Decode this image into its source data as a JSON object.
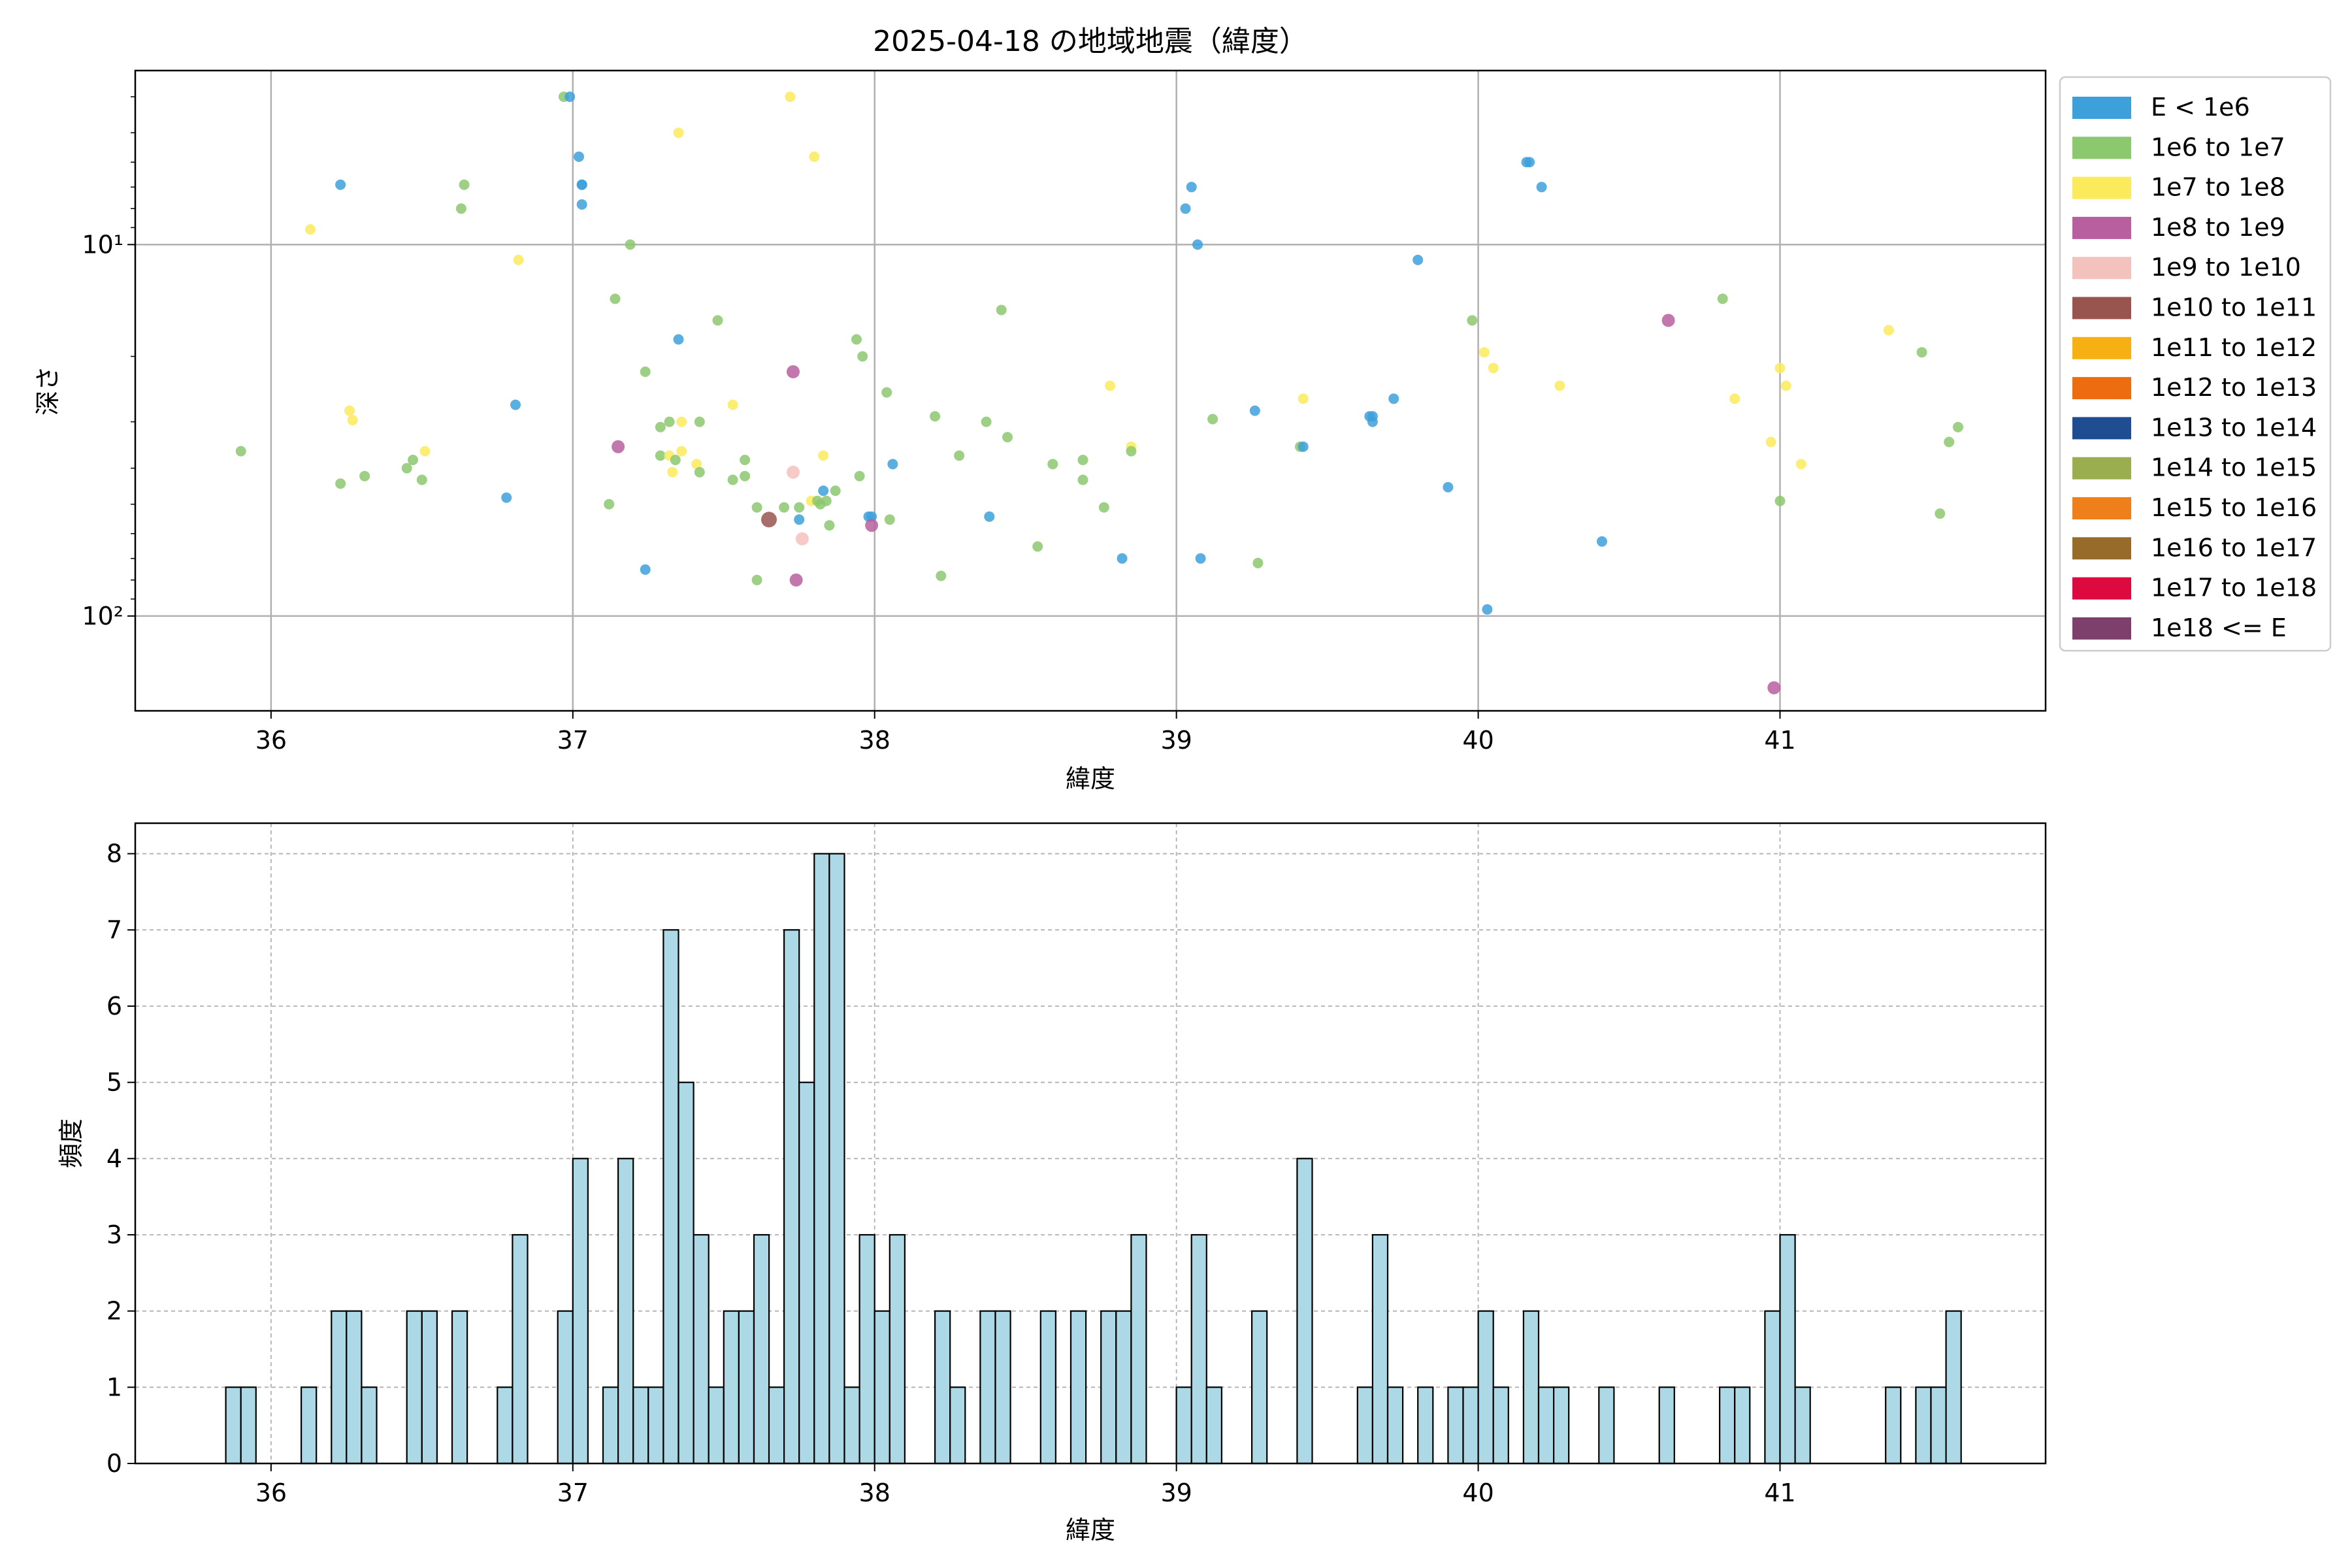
{
  "chart_data": [
    {
      "type": "scatter",
      "title": "2025-04-18 の地域地震（緯度）",
      "xlabel": "緯度",
      "ylabel": "深さ",
      "xlim": [
        35.55,
        41.88
      ],
      "ylim": [
        180,
        3.4
      ],
      "yscale": "log (inverted)",
      "xticks": [
        "36",
        "37",
        "38",
        "39",
        "40",
        "41"
      ],
      "yticks": [
        {
          "label": "10¹",
          "value": 10
        },
        {
          "label": "10²",
          "value": 100
        }
      ],
      "grid": true,
      "legend_position": "outside-right",
      "legend": [
        {
          "label": "E < 1e6",
          "color": "#3da0da"
        },
        {
          "label": "1e6 to 1e7",
          "color": "#8cc86e"
        },
        {
          "label": "1e7 to 1e8",
          "color": "#fbeb5c"
        },
        {
          "label": "1e8 to 1e9",
          "color": "#b8609f"
        },
        {
          "label": "1e9 to 1e10",
          "color": "#f4c2bd"
        },
        {
          "label": "1e10 to 1e11",
          "color": "#985550"
        },
        {
          "label": "1e11 to 1e12",
          "color": "#f7b014"
        },
        {
          "label": "1e12 to 1e13",
          "color": "#ed6c10"
        },
        {
          "label": "1e13 to 1e14",
          "color": "#1f4d91"
        },
        {
          "label": "1e14 to 1e15",
          "color": "#9aae50"
        },
        {
          "label": "1e15 to 1e16",
          "color": "#ef7f1a"
        },
        {
          "label": "1e16 to 1e17",
          "color": "#976c2a"
        },
        {
          "label": "1e17 to 1e18",
          "color": "#dc0a3f"
        },
        {
          "label": "1e18 <= E",
          "color": "#7d3f6c"
        }
      ],
      "points": [
        [
          35.9,
          36.0,
          1
        ],
        [
          36.13,
          9.1,
          2
        ],
        [
          36.23,
          6.9,
          0
        ],
        [
          36.23,
          44.0,
          1
        ],
        [
          36.26,
          28.0,
          2
        ],
        [
          36.27,
          29.7,
          2
        ],
        [
          36.31,
          42.0,
          1
        ],
        [
          36.45,
          40.0,
          1
        ],
        [
          36.47,
          38.0,
          1
        ],
        [
          36.5,
          43.0,
          1
        ],
        [
          36.51,
          36.0,
          2
        ],
        [
          36.63,
          8.0,
          1
        ],
        [
          36.64,
          6.9,
          1
        ],
        [
          36.78,
          48.0,
          0
        ],
        [
          36.81,
          27.0,
          0
        ],
        [
          36.82,
          11.0,
          2
        ],
        [
          36.97,
          4.0,
          1
        ],
        [
          36.99,
          4.0,
          0
        ],
        [
          37.02,
          5.8,
          0
        ],
        [
          37.03,
          6.9,
          0
        ],
        [
          37.03,
          6.9,
          0
        ],
        [
          37.03,
          7.8,
          0
        ],
        [
          37.12,
          50.0,
          1
        ],
        [
          37.14,
          14.0,
          1
        ],
        [
          37.15,
          35.0,
          3
        ],
        [
          37.19,
          10.0,
          1
        ],
        [
          37.24,
          22.0,
          1
        ],
        [
          37.24,
          75.0,
          0
        ],
        [
          37.29,
          31.0,
          1
        ],
        [
          37.29,
          37.0,
          1
        ],
        [
          37.32,
          30.0,
          1
        ],
        [
          37.32,
          37.0,
          2
        ],
        [
          37.33,
          41.0,
          2
        ],
        [
          37.34,
          38.0,
          1
        ],
        [
          37.35,
          18.0,
          0
        ],
        [
          37.35,
          5.0,
          2
        ],
        [
          37.36,
          30.0,
          2
        ],
        [
          37.36,
          36.0,
          2
        ],
        [
          37.41,
          39.0,
          2
        ],
        [
          37.42,
          30.0,
          1
        ],
        [
          37.42,
          41.0,
          1
        ],
        [
          37.48,
          16.0,
          1
        ],
        [
          37.53,
          27.0,
          2
        ],
        [
          37.53,
          43.0,
          1
        ],
        [
          37.57,
          38.0,
          1
        ],
        [
          37.57,
          42.0,
          1
        ],
        [
          37.61,
          80.0,
          1
        ],
        [
          37.61,
          51.0,
          1
        ],
        [
          37.65,
          55.0,
          5
        ],
        [
          37.7,
          51.0,
          1
        ],
        [
          37.72,
          4.0,
          2
        ],
        [
          37.73,
          22.0,
          3
        ],
        [
          37.73,
          41.0,
          4
        ],
        [
          37.74,
          80.0,
          3
        ],
        [
          37.75,
          51.0,
          1
        ],
        [
          37.75,
          55.0,
          0
        ],
        [
          37.76,
          62.0,
          4
        ],
        [
          37.79,
          49.0,
          2
        ],
        [
          37.8,
          5.8,
          2
        ],
        [
          37.81,
          49.0,
          1
        ],
        [
          37.82,
          50.0,
          1
        ],
        [
          37.83,
          46.0,
          0
        ],
        [
          37.83,
          37.0,
          2
        ],
        [
          37.84,
          49.0,
          1
        ],
        [
          37.85,
          57.0,
          1
        ],
        [
          37.87,
          46.0,
          1
        ],
        [
          37.94,
          18.0,
          1
        ],
        [
          37.95,
          42.0,
          1
        ],
        [
          37.96,
          20.0,
          1
        ],
        [
          37.98,
          54.0,
          0
        ],
        [
          37.99,
          54.0,
          0
        ],
        [
          37.99,
          57.0,
          3
        ],
        [
          38.04,
          25.0,
          1
        ],
        [
          38.05,
          55.0,
          1
        ],
        [
          38.06,
          39.0,
          0
        ],
        [
          38.2,
          29.0,
          1
        ],
        [
          38.22,
          78.0,
          1
        ],
        [
          38.28,
          37.0,
          1
        ],
        [
          38.37,
          30.0,
          1
        ],
        [
          38.38,
          54.0,
          0
        ],
        [
          38.42,
          15.0,
          1
        ],
        [
          38.44,
          33.0,
          1
        ],
        [
          38.54,
          65.0,
          1
        ],
        [
          38.59,
          39.0,
          1
        ],
        [
          38.69,
          38.0,
          1
        ],
        [
          38.69,
          43.0,
          1
        ],
        [
          38.76,
          51.0,
          1
        ],
        [
          38.78,
          24.0,
          2
        ],
        [
          38.82,
          70.0,
          0
        ],
        [
          38.85,
          35.0,
          2
        ],
        [
          38.85,
          36.0,
          1
        ],
        [
          39.03,
          8.0,
          0
        ],
        [
          39.05,
          7.0,
          0
        ],
        [
          39.07,
          10.0,
          0
        ],
        [
          39.08,
          70.0,
          0
        ],
        [
          39.12,
          29.5,
          1
        ],
        [
          39.26,
          28.0,
          0
        ],
        [
          39.27,
          72.0,
          1
        ],
        [
          39.41,
          35.0,
          1
        ],
        [
          39.42,
          26.0,
          2
        ],
        [
          39.42,
          35.0,
          0
        ],
        [
          39.64,
          29.0,
          0
        ],
        [
          39.65,
          29.0,
          0
        ],
        [
          39.65,
          30.0,
          0
        ],
        [
          39.72,
          26.0,
          0
        ],
        [
          39.8,
          11.0,
          0
        ],
        [
          39.9,
          45.0,
          0
        ],
        [
          39.98,
          16.0,
          1
        ],
        [
          40.02,
          19.5,
          2
        ],
        [
          40.03,
          96.0,
          0
        ],
        [
          40.05,
          21.5,
          2
        ],
        [
          40.16,
          6.0,
          0
        ],
        [
          40.17,
          6.0,
          0
        ],
        [
          40.21,
          7.0,
          0
        ],
        [
          40.27,
          24.0,
          2
        ],
        [
          40.41,
          63.0,
          0
        ],
        [
          40.63,
          16.0,
          3
        ],
        [
          40.81,
          14.0,
          1
        ],
        [
          40.85,
          26.0,
          2
        ],
        [
          40.97,
          34.0,
          2
        ],
        [
          40.98,
          156.0,
          3
        ],
        [
          41.0,
          21.5,
          2
        ],
        [
          41.0,
          49.0,
          1
        ],
        [
          41.02,
          24.0,
          2
        ],
        [
          41.07,
          39.0,
          2
        ],
        [
          41.36,
          17.0,
          2
        ],
        [
          41.47,
          19.5,
          1
        ],
        [
          41.53,
          53.0,
          1
        ],
        [
          41.56,
          34.0,
          1
        ],
        [
          41.59,
          31.0,
          1
        ]
      ]
    },
    {
      "type": "bar",
      "title": "",
      "xlabel": "緯度",
      "ylabel": "頻度",
      "xlim": [
        35.55,
        41.88
      ],
      "ylim": [
        0,
        8.4
      ],
      "xticks": [
        "36",
        "37",
        "38",
        "39",
        "40",
        "41"
      ],
      "yticks": [
        "0",
        "1",
        "2",
        "3",
        "4",
        "5",
        "6",
        "7",
        "8"
      ],
      "grid": true,
      "bar_color": "#add8e6",
      "bin_width": 0.05,
      "bins": [
        [
          35.85,
          1
        ],
        [
          35.9,
          1
        ],
        [
          36.1,
          1
        ],
        [
          36.2,
          2
        ],
        [
          36.25,
          2
        ],
        [
          36.3,
          1
        ],
        [
          36.45,
          2
        ],
        [
          36.5,
          2
        ],
        [
          36.6,
          2
        ],
        [
          36.75,
          1
        ],
        [
          36.8,
          3
        ],
        [
          36.95,
          2
        ],
        [
          37.0,
          4
        ],
        [
          37.1,
          1
        ],
        [
          37.15,
          4
        ],
        [
          37.2,
          1
        ],
        [
          37.25,
          1
        ],
        [
          37.3,
          7
        ],
        [
          37.35,
          5
        ],
        [
          37.4,
          3
        ],
        [
          37.45,
          1
        ],
        [
          37.5,
          2
        ],
        [
          37.55,
          2
        ],
        [
          37.6,
          3
        ],
        [
          37.65,
          1
        ],
        [
          37.7,
          7
        ],
        [
          37.75,
          5
        ],
        [
          37.8,
          8
        ],
        [
          37.85,
          8
        ],
        [
          37.9,
          1
        ],
        [
          37.95,
          3
        ],
        [
          38.0,
          2
        ],
        [
          38.05,
          3
        ],
        [
          38.2,
          2
        ],
        [
          38.25,
          1
        ],
        [
          38.35,
          2
        ],
        [
          38.4,
          2
        ],
        [
          38.55,
          2
        ],
        [
          38.65,
          2
        ],
        [
          38.75,
          2
        ],
        [
          38.8,
          2
        ],
        [
          38.85,
          3
        ],
        [
          39.0,
          1
        ],
        [
          39.05,
          3
        ],
        [
          39.1,
          1
        ],
        [
          39.25,
          2
        ],
        [
          39.4,
          4
        ],
        [
          39.6,
          1
        ],
        [
          39.65,
          3
        ],
        [
          39.7,
          1
        ],
        [
          39.8,
          1
        ],
        [
          39.9,
          1
        ],
        [
          39.95,
          1
        ],
        [
          40.0,
          2
        ],
        [
          40.05,
          1
        ],
        [
          40.15,
          2
        ],
        [
          40.2,
          1
        ],
        [
          40.25,
          1
        ],
        [
          40.4,
          1
        ],
        [
          40.6,
          1
        ],
        [
          40.8,
          1
        ],
        [
          40.85,
          1
        ],
        [
          40.95,
          2
        ],
        [
          41.0,
          3
        ],
        [
          41.05,
          1
        ],
        [
          41.35,
          1
        ],
        [
          41.45,
          1
        ],
        [
          41.5,
          1
        ],
        [
          41.55,
          2
        ]
      ]
    }
  ]
}
